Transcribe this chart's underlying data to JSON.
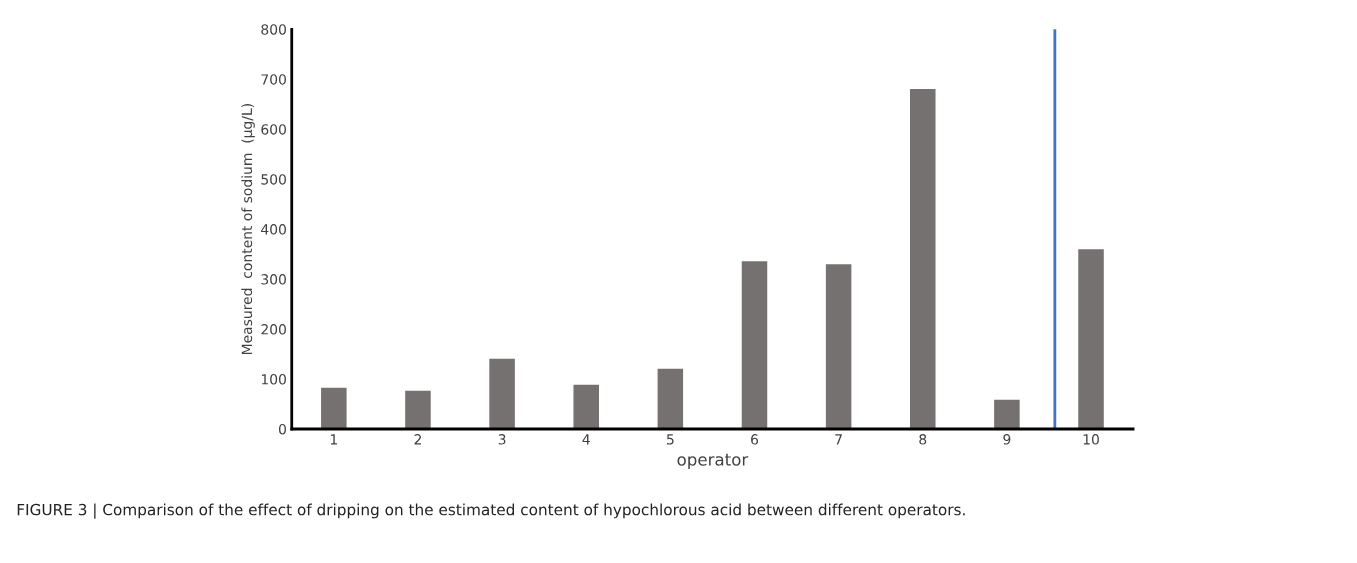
{
  "chart_data": {
    "type": "bar",
    "xlabel": "operator",
    "ylabel": "Measured  content of sodium  (μg/L)",
    "x": [
      1,
      2,
      3,
      4,
      5,
      6,
      7,
      8,
      9,
      10
    ],
    "values": [
      84,
      78,
      142,
      90,
      122,
      337,
      331,
      682,
      60,
      361
    ],
    "color": "#767171",
    "xlim": [
      0.5,
      10.5
    ],
    "xticks": [
      1,
      2,
      3,
      4,
      5,
      6,
      7,
      8,
      9,
      10
    ],
    "ylim": [
      0,
      800
    ],
    "yticks": [
      0,
      100,
      200,
      300,
      400,
      500,
      600,
      700,
      800
    ],
    "grid": false,
    "ref_lines": [
      {
        "axis": "x",
        "value": 9.57,
        "color": "#4472c4",
        "line_style": "solid"
      }
    ],
    "annotations": [
      "FIGURE 3 | Comparison of the effect of dripping on the estimated content of hypochlorous acid between different operators."
    ]
  }
}
